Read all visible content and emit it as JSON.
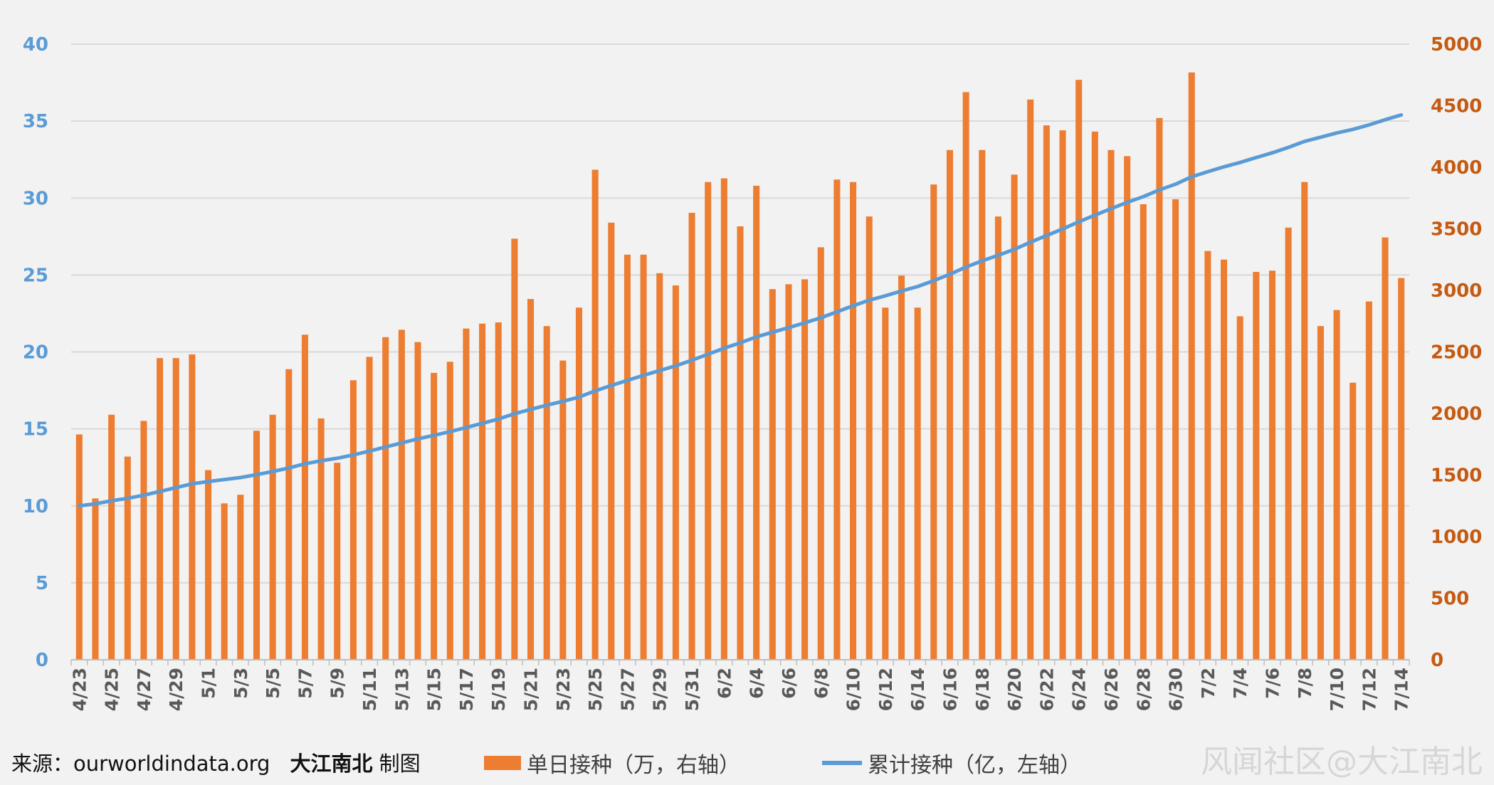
{
  "source": {
    "label": "来源：ourworldindata.org",
    "author": "大江南北",
    "suffix": "制图"
  },
  "watermark": "风闻社区@大江南北",
  "colors": {
    "bar": "#ed7d31",
    "line": "#5b9bd5",
    "left_axis_text": "#5b9bd5",
    "right_axis_text": "#c55a11",
    "grid": "#d9d9d9",
    "background": "#f2f2f2"
  },
  "chart_data": {
    "type": "bar",
    "legend_position": "bottom",
    "grid": true,
    "categories": [
      "4/23",
      "4/24",
      "4/25",
      "4/26",
      "4/27",
      "4/28",
      "4/29",
      "4/30",
      "5/1",
      "5/2",
      "5/3",
      "5/4",
      "5/5",
      "5/6",
      "5/7",
      "5/8",
      "5/9",
      "5/10",
      "5/11",
      "5/12",
      "5/13",
      "5/14",
      "5/15",
      "5/16",
      "5/17",
      "5/18",
      "5/19",
      "5/20",
      "5/21",
      "5/22",
      "5/23",
      "5/24",
      "5/25",
      "5/26",
      "5/27",
      "5/28",
      "5/29",
      "5/30",
      "5/31",
      "6/1",
      "6/2",
      "6/3",
      "6/4",
      "6/5",
      "6/6",
      "6/7",
      "6/8",
      "6/9",
      "6/10",
      "6/11",
      "6/12",
      "6/13",
      "6/14",
      "6/15",
      "6/16",
      "6/17",
      "6/18",
      "6/19",
      "6/20",
      "6/21",
      "6/22",
      "6/23",
      "6/24",
      "6/25",
      "6/26",
      "6/27",
      "6/28",
      "6/29",
      "6/30",
      "7/1",
      "7/2",
      "7/3",
      "7/4",
      "7/5",
      "7/6",
      "7/7",
      "7/8",
      "7/9",
      "7/10",
      "7/11",
      "7/12",
      "7/13",
      "7/14"
    ],
    "tick_labels": [
      "4/23",
      "4/25",
      "4/27",
      "4/29",
      "5/1",
      "5/3",
      "5/5",
      "5/7",
      "5/9",
      "5/11",
      "5/13",
      "5/15",
      "5/17",
      "5/19",
      "5/21",
      "5/23",
      "5/25",
      "5/27",
      "5/29",
      "5/31",
      "6/2",
      "6/4",
      "6/6",
      "6/8",
      "6/10",
      "6/12",
      "6/14",
      "6/16",
      "6/18",
      "6/20",
      "6/22",
      "6/24",
      "6/26",
      "6/28",
      "6/30",
      "7/2",
      "7/4",
      "7/6",
      "7/8",
      "7/10",
      "7/12",
      "7/14"
    ],
    "left_axis": {
      "min": 0,
      "max": 40,
      "ticks": [
        "0",
        "5",
        "10",
        "15",
        "20",
        "25",
        "30",
        "35",
        "40"
      ]
    },
    "right_axis": {
      "min": 0,
      "max": 5000,
      "ticks": [
        "0",
        "500",
        "1000",
        "1500",
        "2000",
        "2500",
        "3000",
        "3500",
        "4000",
        "4500",
        "5000"
      ]
    },
    "series": [
      {
        "name": "单日接种（万，右轴）",
        "type": "bar",
        "axis": "right",
        "values": [
          1830,
          1310,
          1990,
          1650,
          1940,
          2450,
          2450,
          2480,
          1540,
          1270,
          1340,
          1860,
          1990,
          2360,
          2640,
          1960,
          1600,
          2270,
          2460,
          2620,
          2680,
          2580,
          2330,
          2420,
          2690,
          2730,
          2740,
          3420,
          2930,
          2710,
          2430,
          2860,
          3980,
          3550,
          3290,
          3290,
          3140,
          3040,
          3630,
          3880,
          3910,
          3520,
          3850,
          3010,
          3050,
          3090,
          3350,
          3900,
          3880,
          3600,
          2860,
          3120,
          2860,
          3860,
          4140,
          4610,
          4140,
          3600,
          3940,
          4550,
          4340,
          4300,
          4710,
          4290,
          4140,
          4090,
          3700,
          4400,
          3740,
          4770,
          3320,
          3250,
          2790,
          3150,
          3160,
          3510,
          3880,
          2710,
          2840,
          2250,
          2910,
          3430,
          3100
        ]
      },
      {
        "name": "累计接种（亿，左轴）",
        "type": "line",
        "axis": "left",
        "values": [
          10.0,
          10.13,
          10.33,
          10.49,
          10.69,
          10.93,
          11.18,
          11.43,
          11.58,
          11.71,
          11.84,
          12.03,
          12.23,
          12.46,
          12.73,
          12.93,
          13.09,
          13.31,
          13.56,
          13.82,
          14.09,
          14.35,
          14.58,
          14.82,
          15.09,
          15.36,
          15.64,
          15.98,
          16.27,
          16.54,
          16.79,
          17.07,
          17.47,
          17.82,
          18.15,
          18.48,
          18.79,
          19.1,
          19.46,
          19.85,
          20.24,
          20.59,
          20.98,
          21.28,
          21.58,
          21.89,
          22.22,
          22.61,
          23.0,
          23.36,
          23.65,
          23.96,
          24.25,
          24.63,
          25.05,
          25.51,
          25.92,
          26.28,
          26.67,
          27.13,
          27.56,
          27.99,
          28.46,
          28.89,
          29.31,
          29.72,
          30.09,
          30.53,
          30.9,
          31.38,
          31.71,
          32.03,
          32.31,
          32.63,
          32.94,
          33.29,
          33.68,
          33.95,
          34.23,
          34.46,
          34.75,
          35.09,
          35.4
        ]
      }
    ]
  }
}
